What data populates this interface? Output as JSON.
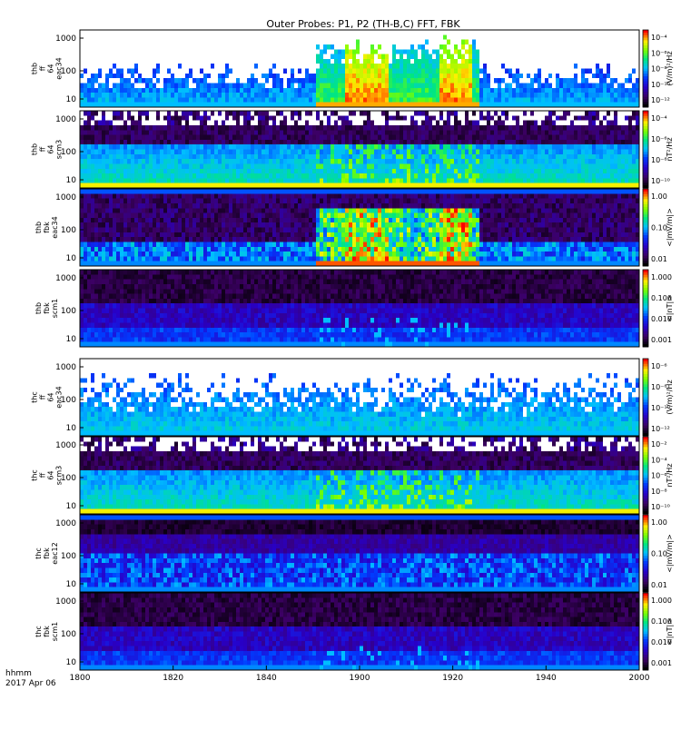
{
  "title": "Outer Probes: P1, P2 (TH-B,C) FFT, FBK",
  "time_axis": {
    "ticks": [
      "1800",
      "1820",
      "1840",
      "1900",
      "1920",
      "1940",
      "2000"
    ],
    "footer_line1": "hhmm",
    "footer_line2": "2017 Apr 06"
  },
  "chart_data": [
    {
      "type": "heatmap",
      "panel_id": "thb-ff-eac34",
      "ylabel_lines": [
        "thb",
        "ff",
        "64",
        "eac34"
      ],
      "yticks": [
        "1000",
        "100",
        "10"
      ],
      "colorbar_ticks": [
        "10⁻⁴",
        "10⁻⁶",
        "10⁻⁸",
        "10⁻¹⁰",
        "10⁻¹²"
      ],
      "colorbar_label": "(V/m)²/Hz",
      "pattern": "burst"
    },
    {
      "type": "heatmap",
      "panel_id": "thb-ff-scm3",
      "ylabel_lines": [
        "thb",
        "ff",
        "64",
        "scm3"
      ],
      "yticks": [
        "1000",
        "100",
        "10"
      ],
      "colorbar_ticks": [
        "10⁻⁴",
        "10⁻⁶",
        "10⁻⁸",
        "10⁻¹⁰"
      ],
      "colorbar_label": "nT²/Hz",
      "pattern": "speckle"
    },
    {
      "type": "heatmap",
      "panel_id": "thb-fbk-eac34",
      "ylabel_lines": [
        "thb",
        "fbk",
        "eac34"
      ],
      "yticks": [
        "1000",
        "100",
        "10"
      ],
      "colorbar_ticks": [
        "1.00",
        "0.10",
        "0.01"
      ],
      "colorbar_label": "<|mV/m|>",
      "pattern": "fbk-burst"
    },
    {
      "type": "heatmap",
      "panel_id": "thb-fbk-scm1",
      "ylabel_lines": [
        "thb",
        "fbk",
        "scm1"
      ],
      "yticks": [
        "1000",
        "100",
        "10"
      ],
      "colorbar_ticks": [
        "1.000",
        "0.100",
        "0.010",
        "0.001"
      ],
      "colorbar_label": "<|nT|>",
      "pattern": "fbk-quiet"
    },
    {
      "type": "heatmap",
      "panel_id": "thc-ff-eac34",
      "ylabel_lines": [
        "thc",
        "ff",
        "64",
        "eac34"
      ],
      "yticks": [
        "1000",
        "100",
        "10"
      ],
      "colorbar_ticks": [
        "10⁻⁶",
        "10⁻⁸",
        "10⁻¹⁰",
        "10⁻¹²"
      ],
      "colorbar_label": "(V/m)²/Hz",
      "pattern": "spiky"
    },
    {
      "type": "heatmap",
      "panel_id": "thc-ff-scm3",
      "ylabel_lines": [
        "thc",
        "ff",
        "64",
        "scm3"
      ],
      "yticks": [
        "1000",
        "100",
        "10"
      ],
      "colorbar_ticks": [
        "10⁻²",
        "10⁻⁴",
        "10⁻⁶",
        "10⁻⁸",
        "10⁻¹⁰"
      ],
      "colorbar_label": "nT²/Hz",
      "pattern": "speckle"
    },
    {
      "type": "heatmap",
      "panel_id": "thc-fbk-eac12",
      "ylabel_lines": [
        "thc",
        "fbk",
        "eac12"
      ],
      "yticks": [
        "1000",
        "100",
        "10"
      ],
      "colorbar_ticks": [
        "1.00",
        "0.10",
        "0.01"
      ],
      "colorbar_label": "<|mV/m|>",
      "pattern": "fbk-striped"
    },
    {
      "type": "heatmap",
      "panel_id": "thc-fbk-scm1",
      "ylabel_lines": [
        "thc",
        "fbk",
        "scm1"
      ],
      "yticks": [
        "1000",
        "100",
        "10"
      ],
      "colorbar_ticks": [
        "1.000",
        "0.100",
        "0.010",
        "0.001"
      ],
      "colorbar_label": "<|nT|>",
      "pattern": "fbk-quiet"
    }
  ]
}
